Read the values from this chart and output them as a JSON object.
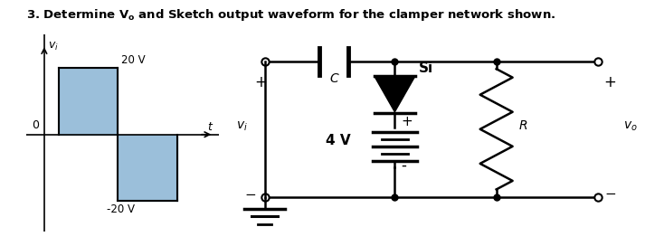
{
  "bg_color": "#ffffff",
  "graph": {
    "pos_label": "20 V",
    "neg_label": "-20 V",
    "fill_color": "#8ab4d4",
    "fill_alpha": 0.85
  },
  "circuit": {
    "label_C": "C",
    "label_Si": "Si",
    "label_R": "R",
    "label_4V": "4 V",
    "label_vi": "$v_i$",
    "label_vo": "$v_o$"
  }
}
